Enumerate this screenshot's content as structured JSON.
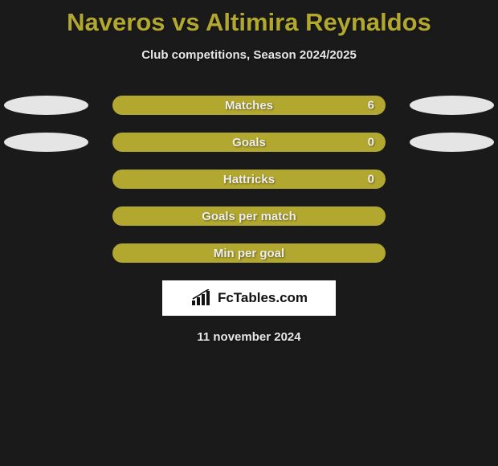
{
  "title": "Naveros vs Altimira Reynaldos",
  "subtitle": "Club competitions, Season 2024/2025",
  "accent_color": "#b3a82f",
  "ellipse_color": "#e5e5e5",
  "background_color": "#1a1a1a",
  "text_light": "#e8e8e8",
  "stats": [
    {
      "label": "Matches",
      "value": "6",
      "show_value": true,
      "show_ellipses": true
    },
    {
      "label": "Goals",
      "value": "0",
      "show_value": true,
      "show_ellipses": true
    },
    {
      "label": "Hattricks",
      "value": "0",
      "show_value": true,
      "show_ellipses": false
    },
    {
      "label": "Goals per match",
      "value": "",
      "show_value": false,
      "show_ellipses": false
    },
    {
      "label": "Min per goal",
      "value": "",
      "show_value": false,
      "show_ellipses": false
    }
  ],
  "branding": {
    "text": "FcTables.com"
  },
  "date": "11 november 2024"
}
